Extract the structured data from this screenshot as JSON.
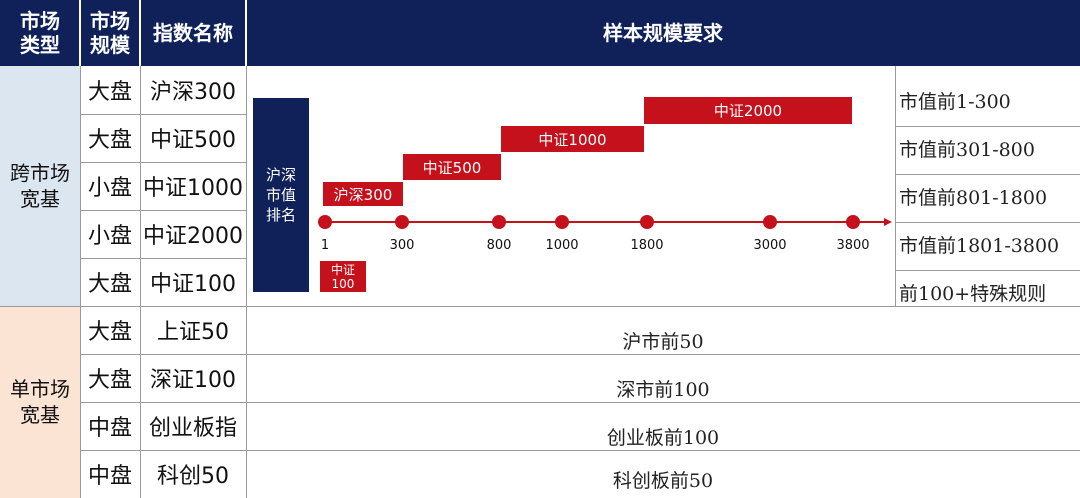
{
  "header": {
    "market_type": "市场\n类型",
    "market_scale": "市场\n规模",
    "index_name": "指数名称",
    "sample_req": "样本规模要求"
  },
  "groups": {
    "cross": "跨市场\n宽基",
    "single": "单市场\n宽基"
  },
  "cross_rows": [
    {
      "scale": "大盘",
      "name": "沪深300",
      "req": "市值前1-300"
    },
    {
      "scale": "大盘",
      "name": "中证500",
      "req": "市值前301-800"
    },
    {
      "scale": "小盘",
      "name": "中证1000",
      "req": "市值前801-1800"
    },
    {
      "scale": "小盘",
      "name": "中证2000",
      "req": "市值前1801-3800"
    },
    {
      "scale": "大盘",
      "name": "中证100",
      "req": "前100+特殊规则"
    }
  ],
  "single_rows": [
    {
      "scale": "大盘",
      "name": "上证50",
      "req": "沪市前50"
    },
    {
      "scale": "大盘",
      "name": "深证100",
      "req": "深市前100"
    },
    {
      "scale": "中盘",
      "name": "创业板指",
      "req": "创业板前100"
    },
    {
      "scale": "中盘",
      "name": "科创50",
      "req": "科创板前50"
    }
  ],
  "diagram": {
    "axis_label": "沪深\n市值\n排名",
    "ticks": [
      "1",
      "300",
      "800",
      "1000",
      "1800",
      "3000",
      "3800"
    ],
    "bars": {
      "hs300": "沪深300",
      "zz500": "中证500",
      "zz1000": "中证1000",
      "zz2000": "中证2000",
      "zz100": "中证\n100"
    }
  },
  "colors": {
    "navy": "#0f2158",
    "red": "#c4111b",
    "blue_bg": "#dce6f0",
    "peach_bg": "#fce4d4"
  }
}
